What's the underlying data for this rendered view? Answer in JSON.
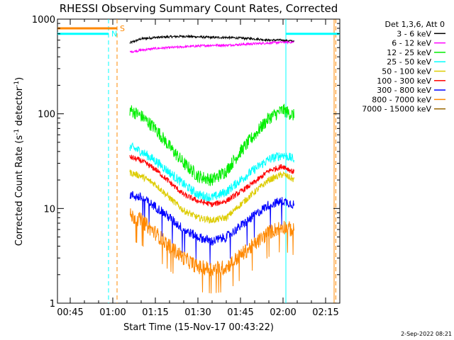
{
  "chart_data": {
    "type": "line",
    "title": "RHESSI Observing Summary Count Rates, Corrected",
    "xlabel": "Start Time (15-Nov-17 00:43:22)",
    "ylabel": "Corrected Count Rate (s⁻¹ detector⁻¹)",
    "ylabel_parts": [
      "Corrected Count Rate (s",
      "-1",
      " detector",
      "-1",
      ")"
    ],
    "yscale": "log",
    "ylim": [
      1,
      1000
    ],
    "xlim_minutes": [
      40.5,
      140
    ],
    "x_ticks": [
      {
        "minute": 45,
        "label": "00:45"
      },
      {
        "minute": 60,
        "label": "01:00"
      },
      {
        "minute": 75,
        "label": "01:15"
      },
      {
        "minute": 90,
        "label": "01:30"
      },
      {
        "minute": 105,
        "label": "01:45"
      },
      {
        "minute": 120,
        "label": "02:00"
      },
      {
        "minute": 135,
        "label": "02:15"
      }
    ],
    "y_ticks": [
      {
        "value": 1,
        "label": "1"
      },
      {
        "value": 10,
        "label": "10"
      },
      {
        "value": 100,
        "label": "100"
      },
      {
        "value": 1000,
        "label": "1000"
      }
    ],
    "legend_header": "Det 1,3,6, Att 0",
    "series": [
      {
        "name": "3 - 6 keV",
        "color": "#000000",
        "x": [
          66,
          70,
          75,
          80,
          85,
          90,
          95,
          100,
          105,
          110,
          115,
          120,
          124
        ],
        "values": [
          560,
          620,
          640,
          650,
          660,
          650,
          640,
          640,
          630,
          620,
          600,
          600,
          580
        ]
      },
      {
        "name": "6 - 12 keV",
        "color": "#ff00ff",
        "x": [
          66,
          70,
          75,
          80,
          85,
          90,
          95,
          100,
          105,
          110,
          115,
          120,
          124
        ],
        "values": [
          450,
          470,
          490,
          500,
          510,
          520,
          530,
          530,
          540,
          550,
          560,
          570,
          570
        ]
      },
      {
        "name": "12 - 25 keV",
        "color": "#00ee00",
        "x": [
          66,
          70,
          75,
          80,
          85,
          90,
          95,
          100,
          105,
          110,
          115,
          120,
          124
        ],
        "values": [
          110,
          95,
          70,
          45,
          30,
          22,
          20,
          25,
          40,
          60,
          90,
          110,
          95
        ]
      },
      {
        "name": "25 - 50 keV",
        "color": "#00ffff",
        "x": [
          66,
          70,
          75,
          80,
          85,
          90,
          95,
          100,
          105,
          110,
          115,
          120,
          124
        ],
        "values": [
          45,
          40,
          32,
          24,
          18,
          14,
          13,
          15,
          20,
          26,
          33,
          37,
          33
        ]
      },
      {
        "name": "50 - 100 keV",
        "color": "#ddcc00",
        "x": [
          66,
          70,
          75,
          80,
          85,
          90,
          95,
          100,
          105,
          110,
          115,
          120,
          124
        ],
        "values": [
          24,
          22,
          18,
          13,
          9.5,
          8,
          7.5,
          8,
          11,
          15,
          20,
          23,
          20
        ]
      },
      {
        "name": "100 - 300 keV",
        "color": "#ff0000",
        "x": [
          66,
          70,
          75,
          80,
          85,
          90,
          95,
          100,
          105,
          110,
          115,
          120,
          124
        ],
        "values": [
          35,
          32,
          26,
          19,
          14,
          12,
          11,
          12,
          15,
          19,
          25,
          28,
          24
        ]
      },
      {
        "name": "300 - 800 keV",
        "color": "#0000ff",
        "x": [
          66,
          70,
          75,
          80,
          85,
          90,
          95,
          100,
          105,
          110,
          115,
          120,
          124
        ],
        "values": [
          14,
          13,
          10.5,
          8,
          6,
          5,
          4.5,
          5,
          6.5,
          8.5,
          11,
          12,
          11
        ]
      },
      {
        "name": "800 - 7000 keV",
        "color": "#ff8800",
        "x": [
          66,
          70,
          75,
          80,
          85,
          90,
          95,
          100,
          105,
          110,
          115,
          120,
          124
        ],
        "values": [
          8.5,
          7.5,
          5.5,
          4,
          3,
          2.4,
          2.3,
          2.4,
          3.2,
          4.2,
          5.6,
          6.5,
          5.8
        ]
      },
      {
        "name": "7000 - 15000 keV",
        "color": "#996600",
        "x": [],
        "values": []
      }
    ],
    "annotations": [
      {
        "type": "vline",
        "minute": 58.5,
        "color": "#00ffff",
        "style": "dashed"
      },
      {
        "type": "vline",
        "minute": 61.5,
        "color": "#ff8800",
        "style": "dashed"
      },
      {
        "type": "vline",
        "minute": 121,
        "color": "#00ffff",
        "style": "solid"
      },
      {
        "type": "vline",
        "minute": 138,
        "color": "#ff8800",
        "style": "solid"
      },
      {
        "type": "vline",
        "minute": 138.6,
        "color": "#ff8800",
        "style": "dashed"
      },
      {
        "type": "hband",
        "from": 40.5,
        "to": 61.5,
        "value": 800,
        "color": "#ff8800",
        "label": "S"
      },
      {
        "type": "hband",
        "from": 40.5,
        "to": 58.5,
        "value": 700,
        "color": "#00ffff",
        "label": "N"
      },
      {
        "type": "hband",
        "from": 121,
        "to": 140,
        "value": 700,
        "color": "#00ffff"
      }
    ],
    "date_stamp": "2-Sep-2022 08:21"
  }
}
